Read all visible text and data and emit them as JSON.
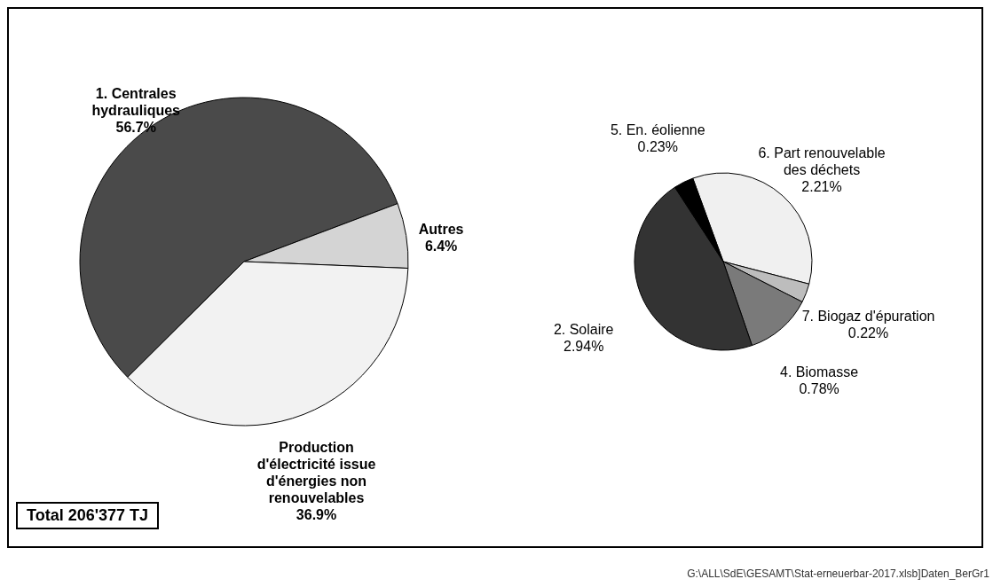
{
  "chart_data": [
    {
      "type": "pie",
      "categories": [
        "1. Centrales hydrauliques",
        "Autres",
        "Production d'électricité issue d'énergies non renouvelables"
      ],
      "values": [
        56.7,
        6.4,
        36.9
      ],
      "value_labels": [
        "56.7%",
        "6.4%",
        "36.9%"
      ],
      "colors": [
        "#4a4a4a",
        "#d4d4d4",
        "#f2f2f2"
      ],
      "annotations": [
        "Total  206'377 TJ"
      ]
    },
    {
      "type": "pie",
      "categories": [
        "6. Part renouvelable des déchets",
        "7. Biogaz d'épuration",
        "4. Biomasse",
        "2. Solaire",
        "5. En. éolienne"
      ],
      "values": [
        2.21,
        0.22,
        0.78,
        2.94,
        0.23
      ],
      "value_labels": [
        "2.21%",
        "0.22%",
        "0.78%",
        "2.94%",
        "0.23%"
      ],
      "colors": [
        "#f0f0f0",
        "#bdbdbd",
        "#7a7a7a",
        "#333333",
        "#000000"
      ],
      "annotations": [
        "G:\\ALL\\SdE\\GESAMT\\Stat-erneuerbar-2017.xlsb]Daten_BerGr1"
      ]
    }
  ]
}
